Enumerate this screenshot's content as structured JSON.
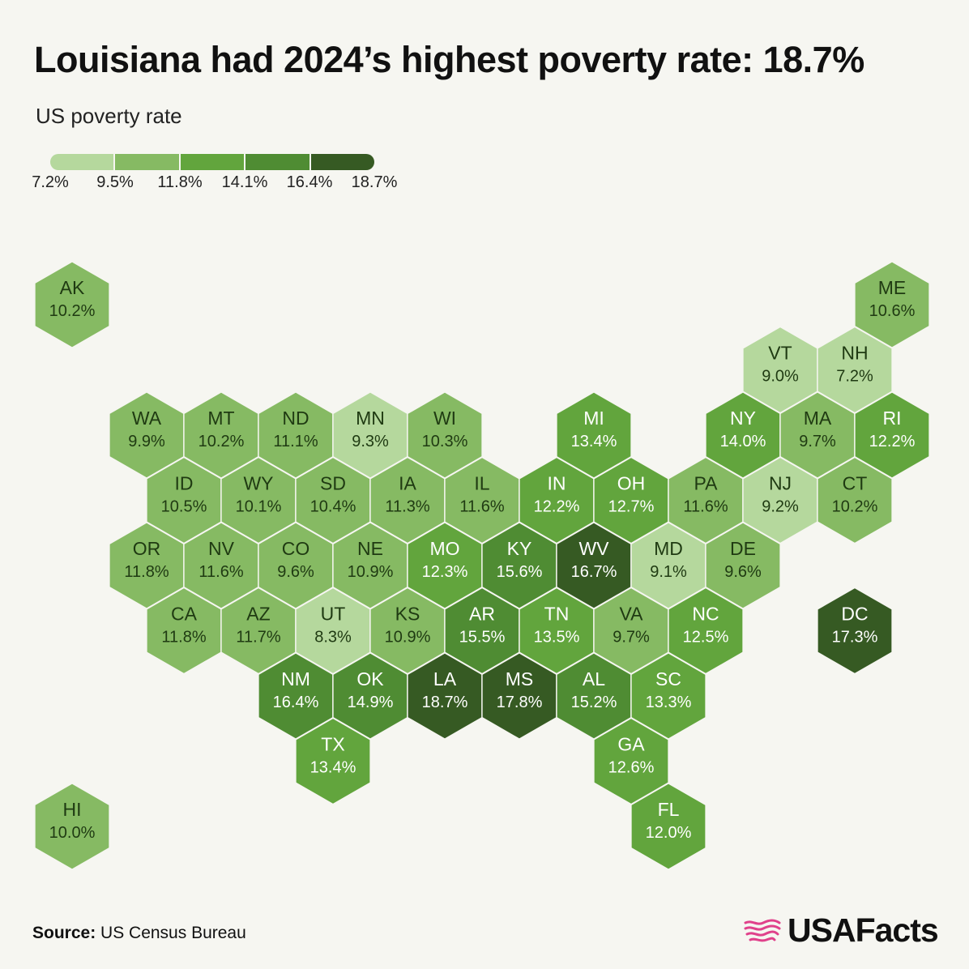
{
  "title": "Louisiana had 2024’s highest poverty rate: 18.7%",
  "subtitle": "US poverty rate",
  "legend": {
    "ticks": [
      "7.2%",
      "9.5%",
      "11.8%",
      "14.1%",
      "16.4%",
      "18.7%"
    ],
    "breaks": [
      7.2,
      9.5,
      11.8,
      14.1,
      16.4,
      18.7
    ],
    "colors": [
      "#b5d89d",
      "#86ba63",
      "#62a53d",
      "#4f8c33",
      "#365a23"
    ]
  },
  "chart_data": {
    "type": "hex-cartogram",
    "unit": "%",
    "states": [
      {
        "abbr": "AK",
        "value": 10.2,
        "label": "10.2%",
        "row": 0,
        "col": 0
      },
      {
        "abbr": "ME",
        "value": 10.6,
        "label": "10.6%",
        "row": 0,
        "col": 11
      },
      {
        "abbr": "VT",
        "value": 9.0,
        "label": "9.0%",
        "row": 1,
        "col": 9
      },
      {
        "abbr": "NH",
        "value": 7.2,
        "label": "7.2%",
        "row": 1,
        "col": 10
      },
      {
        "abbr": "WA",
        "value": 9.9,
        "label": "9.9%",
        "row": 2,
        "col": 1
      },
      {
        "abbr": "MT",
        "value": 10.2,
        "label": "10.2%",
        "row": 2,
        "col": 2
      },
      {
        "abbr": "ND",
        "value": 11.1,
        "label": "11.1%",
        "row": 2,
        "col": 3
      },
      {
        "abbr": "MN",
        "value": 9.3,
        "label": "9.3%",
        "row": 2,
        "col": 4
      },
      {
        "abbr": "WI",
        "value": 10.3,
        "label": "10.3%",
        "row": 2,
        "col": 5
      },
      {
        "abbr": "MI",
        "value": 13.4,
        "label": "13.4%",
        "row": 2,
        "col": 7
      },
      {
        "abbr": "NY",
        "value": 14.0,
        "label": "14.0%",
        "row": 2,
        "col": 9
      },
      {
        "abbr": "MA",
        "value": 9.7,
        "label": "9.7%",
        "row": 2,
        "col": 10
      },
      {
        "abbr": "RI",
        "value": 12.2,
        "label": "12.2%",
        "row": 2,
        "col": 11
      },
      {
        "abbr": "ID",
        "value": 10.5,
        "label": "10.5%",
        "row": 3,
        "col": 1
      },
      {
        "abbr": "WY",
        "value": 10.1,
        "label": "10.1%",
        "row": 3,
        "col": 2
      },
      {
        "abbr": "SD",
        "value": 10.4,
        "label": "10.4%",
        "row": 3,
        "col": 3
      },
      {
        "abbr": "IA",
        "value": 11.3,
        "label": "11.3%",
        "row": 3,
        "col": 4
      },
      {
        "abbr": "IL",
        "value": 11.6,
        "label": "11.6%",
        "row": 3,
        "col": 5
      },
      {
        "abbr": "IN",
        "value": 12.2,
        "label": "12.2%",
        "row": 3,
        "col": 6
      },
      {
        "abbr": "OH",
        "value": 12.7,
        "label": "12.7%",
        "row": 3,
        "col": 7
      },
      {
        "abbr": "PA",
        "value": 11.6,
        "label": "11.6%",
        "row": 3,
        "col": 8
      },
      {
        "abbr": "NJ",
        "value": 9.2,
        "label": "9.2%",
        "row": 3,
        "col": 9
      },
      {
        "abbr": "CT",
        "value": 10.2,
        "label": "10.2%",
        "row": 3,
        "col": 10
      },
      {
        "abbr": "OR",
        "value": 11.8,
        "label": "11.8%",
        "row": 4,
        "col": 1
      },
      {
        "abbr": "NV",
        "value": 11.6,
        "label": "11.6%",
        "row": 4,
        "col": 2
      },
      {
        "abbr": "CO",
        "value": 9.6,
        "label": "9.6%",
        "row": 4,
        "col": 3
      },
      {
        "abbr": "NE",
        "value": 10.9,
        "label": "10.9%",
        "row": 4,
        "col": 4
      },
      {
        "abbr": "MO",
        "value": 12.3,
        "label": "12.3%",
        "row": 4,
        "col": 5
      },
      {
        "abbr": "KY",
        "value": 15.6,
        "label": "15.6%",
        "row": 4,
        "col": 6
      },
      {
        "abbr": "WV",
        "value": 16.7,
        "label": "16.7%",
        "row": 4,
        "col": 7
      },
      {
        "abbr": "MD",
        "value": 9.1,
        "label": "9.1%",
        "row": 4,
        "col": 8
      },
      {
        "abbr": "DE",
        "value": 9.6,
        "label": "9.6%",
        "row": 4,
        "col": 9
      },
      {
        "abbr": "CA",
        "value": 11.8,
        "label": "11.8%",
        "row": 5,
        "col": 1
      },
      {
        "abbr": "AZ",
        "value": 11.7,
        "label": "11.7%",
        "row": 5,
        "col": 2
      },
      {
        "abbr": "UT",
        "value": 8.3,
        "label": "8.3%",
        "row": 5,
        "col": 3
      },
      {
        "abbr": "KS",
        "value": 10.9,
        "label": "10.9%",
        "row": 5,
        "col": 4
      },
      {
        "abbr": "AR",
        "value": 15.5,
        "label": "15.5%",
        "row": 5,
        "col": 5
      },
      {
        "abbr": "TN",
        "value": 13.5,
        "label": "13.5%",
        "row": 5,
        "col": 6
      },
      {
        "abbr": "VA",
        "value": 9.7,
        "label": "9.7%",
        "row": 5,
        "col": 7
      },
      {
        "abbr": "NC",
        "value": 12.5,
        "label": "12.5%",
        "row": 5,
        "col": 8
      },
      {
        "abbr": "DC",
        "value": 17.3,
        "label": "17.3%",
        "row": 5,
        "col": 10
      },
      {
        "abbr": "NM",
        "value": 16.4,
        "label": "16.4%",
        "row": 6,
        "col": 3
      },
      {
        "abbr": "OK",
        "value": 14.9,
        "label": "14.9%",
        "row": 6,
        "col": 4
      },
      {
        "abbr": "LA",
        "value": 18.7,
        "label": "18.7%",
        "row": 6,
        "col": 5
      },
      {
        "abbr": "MS",
        "value": 17.8,
        "label": "17.8%",
        "row": 6,
        "col": 6
      },
      {
        "abbr": "AL",
        "value": 15.2,
        "label": "15.2%",
        "row": 6,
        "col": 7
      },
      {
        "abbr": "SC",
        "value": 13.3,
        "label": "13.3%",
        "row": 6,
        "col": 8
      },
      {
        "abbr": "TX",
        "value": 13.4,
        "label": "13.4%",
        "row": 7,
        "col": 3
      },
      {
        "abbr": "GA",
        "value": 12.6,
        "label": "12.6%",
        "row": 7,
        "col": 7
      },
      {
        "abbr": "HI",
        "value": 10.0,
        "label": "10.0%",
        "row": 8,
        "col": 0
      },
      {
        "abbr": "FL",
        "value": 12.0,
        "label": "12.0%",
        "row": 8,
        "col": 8
      }
    ]
  },
  "source": {
    "label": "Source:",
    "text": "US Census Bureau"
  },
  "brand": {
    "name": "USAFacts",
    "logo_icon": "us-flag-map-icon",
    "logo_color": "#e0418b"
  }
}
